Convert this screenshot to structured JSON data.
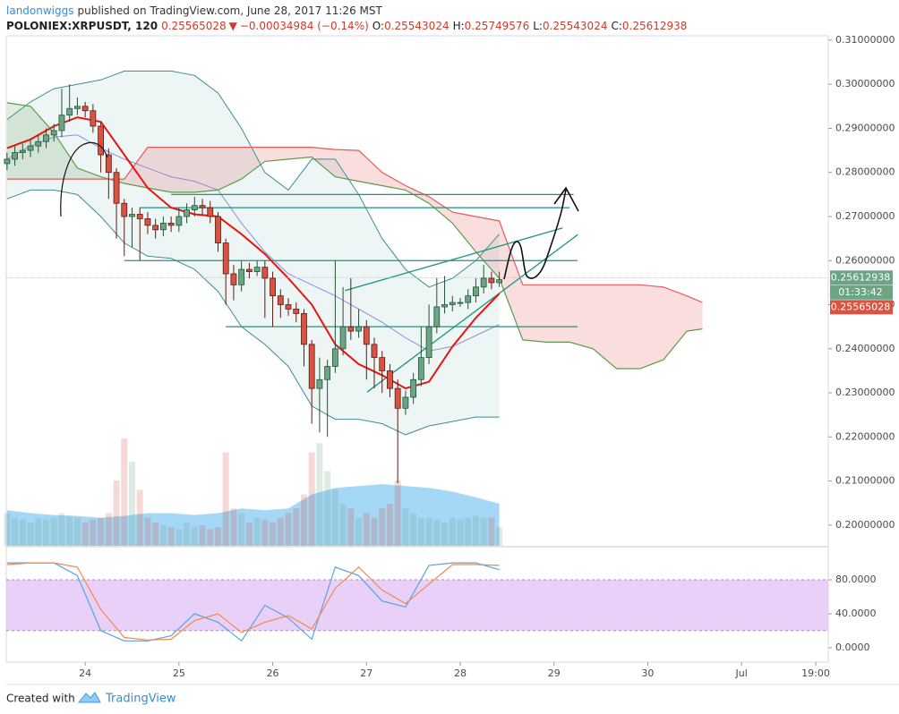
{
  "header": {
    "author": "landonwiggs",
    "published": "published on TradingView.com, June 28, 2017 11:26 MST",
    "symbol": "POLONIEX:XRPUSDT, 120",
    "price": "0.25565028",
    "arrow": "▼",
    "change": "−0.00034984 (−0.14%)",
    "ohlc": [
      {
        "label": "O:",
        "value": "0.25543024"
      },
      {
        "label": "H:",
        "value": "0.25749576"
      },
      {
        "label": "L:",
        "value": "0.25543024"
      },
      {
        "label": "C:",
        "value": "0.25612938"
      }
    ]
  },
  "chart_data": {
    "type": "candlestick",
    "grid": false,
    "xlim": [
      -20.2,
      190.2
    ],
    "xticks": [
      {
        "value": 0,
        "label": "24"
      },
      {
        "value": 24,
        "label": "25"
      },
      {
        "value": 48,
        "label": "26"
      },
      {
        "value": 72,
        "label": "27"
      },
      {
        "value": 96,
        "label": "28"
      },
      {
        "value": 120,
        "label": "29"
      },
      {
        "value": 144,
        "label": "30"
      },
      {
        "value": 168,
        "label": "Jul"
      },
      {
        "value": 187,
        "label": "19:00"
      }
    ],
    "ylim": [
      0.1953,
      0.311
    ],
    "yticks": [
      {
        "value": 0.2,
        "label": "0.20000000"
      },
      {
        "value": 0.21,
        "label": "0.21000000"
      },
      {
        "value": 0.22,
        "label": "0.22000000"
      },
      {
        "value": 0.23,
        "label": "0.23000000"
      },
      {
        "value": 0.24,
        "label": "0.24000000"
      },
      {
        "value": 0.25,
        "label": "0.25000000"
      },
      {
        "value": 0.26,
        "label": "0.26000000"
      },
      {
        "value": 0.27,
        "label": "0.27000000"
      },
      {
        "value": 0.28,
        "label": "0.28000000"
      },
      {
        "value": 0.29,
        "label": "0.29000000"
      },
      {
        "value": 0.3,
        "label": "0.30000000"
      },
      {
        "value": 0.31,
        "label": "0.31000000"
      }
    ],
    "up_color": "#6ba583",
    "down_color": "#d75442",
    "x": [
      -20,
      -18,
      -16,
      -14,
      -12,
      -10,
      -8,
      -6,
      -4,
      -2,
      0,
      2,
      4,
      6,
      8,
      10,
      12,
      14,
      16,
      18,
      20,
      22,
      24,
      26,
      28,
      30,
      32,
      34,
      36,
      38,
      40,
      42,
      44,
      46,
      48,
      50,
      52,
      54,
      56,
      58,
      60,
      62,
      64,
      66,
      68,
      70,
      72,
      74,
      76,
      78,
      80,
      82,
      84,
      86,
      88,
      90,
      92,
      94,
      96,
      98,
      100,
      102,
      104,
      106
    ],
    "open": [
      0.282,
      0.283,
      0.2845,
      0.285,
      0.286,
      0.287,
      0.2885,
      0.2895,
      0.293,
      0.2945,
      0.295,
      0.294,
      0.2905,
      0.284,
      0.28,
      0.273,
      0.27,
      0.2705,
      0.2695,
      0.268,
      0.267,
      0.2685,
      0.268,
      0.27,
      0.2715,
      0.2725,
      0.272,
      0.27,
      0.264,
      0.257,
      0.2545,
      0.258,
      0.2575,
      0.2585,
      0.256,
      0.252,
      0.25,
      0.249,
      0.248,
      0.241,
      0.231,
      0.233,
      0.236,
      0.24,
      0.245,
      0.244,
      0.245,
      0.241,
      0.238,
      0.235,
      0.231,
      0.2265,
      0.229,
      0.233,
      0.238,
      0.245,
      0.2495,
      0.25,
      0.2505,
      0.2505,
      0.252,
      0.254,
      0.256,
      0.255
    ],
    "high": [
      0.2845,
      0.286,
      0.2865,
      0.2875,
      0.2885,
      0.29,
      0.291,
      0.299,
      0.3,
      0.297,
      0.296,
      0.2955,
      0.2915,
      0.2855,
      0.281,
      0.274,
      0.272,
      0.272,
      0.271,
      0.2695,
      0.27,
      0.27,
      0.272,
      0.273,
      0.2745,
      0.274,
      0.2735,
      0.271,
      0.265,
      0.259,
      0.26,
      0.2595,
      0.26,
      0.26,
      0.2575,
      0.2535,
      0.2515,
      0.2505,
      0.249,
      0.242,
      0.238,
      0.2375,
      0.26,
      0.254,
      0.256,
      0.249,
      0.2465,
      0.2425,
      0.2395,
      0.2365,
      0.233,
      0.2305,
      0.2345,
      0.245,
      0.25,
      0.256,
      0.2565,
      0.252,
      0.2515,
      0.2535,
      0.256,
      0.259,
      0.2575,
      0.2575
    ],
    "low": [
      0.2805,
      0.2815,
      0.283,
      0.2835,
      0.2845,
      0.2855,
      0.287,
      0.288,
      0.2915,
      0.293,
      0.2925,
      0.289,
      0.28,
      0.274,
      0.265,
      0.261,
      0.263,
      0.26,
      0.266,
      0.265,
      0.2655,
      0.2665,
      0.2665,
      0.2685,
      0.27,
      0.2705,
      0.2685,
      0.262,
      0.25,
      0.251,
      0.253,
      0.256,
      0.2565,
      0.247,
      0.245,
      0.247,
      0.2475,
      0.246,
      0.236,
      0.223,
      0.221,
      0.22,
      0.2345,
      0.2385,
      0.242,
      0.2425,
      0.233,
      0.231,
      0.23,
      0.229,
      0.2095,
      0.225,
      0.2275,
      0.2315,
      0.2365,
      0.2435,
      0.248,
      0.2485,
      0.2495,
      0.249,
      0.2505,
      0.2525,
      0.2535,
      0.254
    ],
    "close": [
      0.283,
      0.2845,
      0.285,
      0.286,
      0.287,
      0.2885,
      0.2895,
      0.293,
      0.2945,
      0.295,
      0.294,
      0.2905,
      0.284,
      0.28,
      0.273,
      0.27,
      0.2705,
      0.2695,
      0.268,
      0.267,
      0.2685,
      0.268,
      0.27,
      0.2715,
      0.2725,
      0.272,
      0.27,
      0.264,
      0.257,
      0.2545,
      0.258,
      0.2575,
      0.2585,
      0.256,
      0.252,
      0.25,
      0.249,
      0.248,
      0.241,
      0.231,
      0.233,
      0.236,
      0.24,
      0.245,
      0.244,
      0.245,
      0.241,
      0.238,
      0.235,
      0.231,
      0.2265,
      0.229,
      0.233,
      0.238,
      0.245,
      0.2495,
      0.25,
      0.2505,
      0.2505,
      0.252,
      0.254,
      0.256,
      0.255,
      0.25565028
    ],
    "bollinger": {
      "x": [
        -20,
        -14,
        -8,
        -2,
        4,
        10,
        16,
        22,
        28,
        34,
        40,
        46,
        52,
        58,
        64,
        70,
        76,
        82,
        88,
        94,
        100,
        106
      ],
      "upper": [
        0.292,
        0.296,
        0.299,
        0.3,
        0.301,
        0.303,
        0.303,
        0.303,
        0.302,
        0.298,
        0.29,
        0.28,
        0.276,
        0.283,
        0.283,
        0.275,
        0.265,
        0.258,
        0.254,
        0.256,
        0.26,
        0.266
      ],
      "middle": [
        0.283,
        0.286,
        0.288,
        0.2885,
        0.2855,
        0.283,
        0.281,
        0.279,
        0.278,
        0.276,
        0.2685,
        0.262,
        0.257,
        0.2545,
        0.252,
        0.249,
        0.246,
        0.2425,
        0.2395,
        0.2405,
        0.243,
        0.2455
      ],
      "lower": [
        0.274,
        0.276,
        0.276,
        0.275,
        0.27,
        0.264,
        0.261,
        0.2605,
        0.258,
        0.253,
        0.245,
        0.241,
        0.236,
        0.227,
        0.224,
        0.224,
        0.223,
        0.2205,
        0.2225,
        0.2235,
        0.2245,
        0.2245
      ],
      "color": "#3e8e92",
      "middle_color": "#8d8fd6"
    },
    "ema": {
      "x": [
        -20,
        -14,
        -8,
        -2,
        4,
        10,
        16,
        22,
        28,
        34,
        40,
        46,
        52,
        58,
        64,
        70,
        76,
        82,
        88,
        94,
        100,
        106
      ],
      "values": [
        0.2855,
        0.2875,
        0.2905,
        0.2925,
        0.2915,
        0.284,
        0.2765,
        0.272,
        0.2705,
        0.27,
        0.266,
        0.2615,
        0.256,
        0.25,
        0.241,
        0.2365,
        0.234,
        0.231,
        0.2325,
        0.2405,
        0.247,
        0.2525
      ],
      "color": "#e8140f"
    },
    "ichimoku": {
      "x": [
        -20,
        -14,
        -8,
        -2,
        4,
        10,
        16,
        22,
        28,
        34,
        40,
        46,
        52,
        58,
        64,
        70,
        76,
        82,
        88,
        94,
        100,
        106,
        112,
        118,
        124,
        130,
        136,
        142,
        148,
        154,
        158
      ],
      "span_a": [
        0.2958,
        0.295,
        0.289,
        0.281,
        0.279,
        0.2775,
        0.2765,
        0.2755,
        0.2755,
        0.276,
        0.2785,
        0.2825,
        0.283,
        0.2835,
        0.279,
        0.278,
        0.277,
        0.276,
        0.273,
        0.2685,
        0.262,
        0.256,
        0.242,
        0.2415,
        0.2415,
        0.24,
        0.2355,
        0.2355,
        0.2375,
        0.244,
        0.2445
      ],
      "span_b": [
        0.2785,
        0.2785,
        0.2785,
        0.2785,
        0.2785,
        0.2785,
        0.2857,
        0.2857,
        0.2857,
        0.2857,
        0.2857,
        0.2857,
        0.2857,
        0.2857,
        0.2852,
        0.285,
        0.28,
        0.277,
        0.2745,
        0.271,
        0.27,
        0.269,
        0.2545,
        0.2545,
        0.2545,
        0.2545,
        0.2545,
        0.2545,
        0.254,
        0.252,
        0.2505
      ],
      "color_a": "#5d9c4a",
      "color_b": "#e65a5a"
    },
    "levels": [
      {
        "value": 0.275,
        "x": [
          22,
          125
        ]
      },
      {
        "value": 0.272,
        "x": [
          14,
          124
        ]
      },
      {
        "value": 0.26,
        "x": [
          10,
          126
        ]
      },
      {
        "value": 0.245,
        "x": [
          36,
          126
        ]
      }
    ],
    "trendlines": [
      {
        "x": [
          66.5,
          122.2
        ],
        "y": [
          0.2532,
          0.2674
        ]
      },
      {
        "x": [
          72.2,
          126.1
        ],
        "y": [
          0.2302,
          0.2659
        ]
      }
    ],
    "line_color": "#1b9480",
    "volume": {
      "values": [
        35,
        30,
        28,
        25,
        30,
        28,
        30,
        35,
        32,
        30,
        25,
        28,
        30,
        35,
        70,
        115,
        90,
        60,
        30,
        25,
        22,
        20,
        18,
        25,
        20,
        22,
        18,
        20,
        100,
        40,
        35,
        25,
        30,
        28,
        25,
        30,
        35,
        40,
        55,
        100,
        110,
        80,
        60,
        45,
        40,
        30,
        35,
        30,
        40,
        45,
        70,
        40,
        35,
        30,
        30,
        28,
        25,
        30,
        28,
        30,
        32,
        30,
        30,
        20
      ],
      "ma_x": [
        -20,
        -14,
        -8,
        -2,
        4,
        10,
        16,
        22,
        28,
        34,
        40,
        46,
        52,
        58,
        64,
        70,
        76,
        82,
        88,
        94,
        100,
        106
      ],
      "ma": [
        38,
        35,
        33,
        32,
        30,
        32,
        35,
        35,
        33,
        35,
        40,
        38,
        40,
        55,
        62,
        64,
        66,
        64,
        62,
        58,
        52,
        45
      ],
      "ma_color": "#8fcdf5"
    },
    "price_tags": [
      {
        "value": 0.25612938,
        "color": "#6ba583"
      },
      {
        "label": "01:33:42",
        "color": "#6ba583"
      },
      {
        "value": 0.25565028,
        "color": "#d75442"
      }
    ],
    "stochastic": {
      "x": [
        -20,
        -14,
        -8,
        -2,
        4,
        10,
        16,
        22,
        28,
        34,
        40,
        46,
        52,
        58,
        64,
        70,
        76,
        82,
        88,
        94,
        100,
        106
      ],
      "k": [
        100,
        100,
        100,
        85,
        20,
        8,
        8,
        14,
        40,
        30,
        8,
        50,
        35,
        10,
        95,
        85,
        55,
        48,
        97,
        100,
        100,
        92
      ],
      "d": [
        98,
        100,
        100,
        95,
        45,
        12,
        9,
        10,
        32,
        40,
        18,
        30,
        38,
        22,
        70,
        95,
        68,
        52,
        75,
        98,
        98,
        97
      ],
      "k_color": "#5aa0e6",
      "d_color": "#f08a4a",
      "ylim": [
        -17,
        118
      ],
      "yticks": [
        {
          "value": 0,
          "label": "0.0000"
        },
        {
          "value": 40,
          "label": "40.0000"
        },
        {
          "value": 80,
          "label": "80.0000"
        }
      ],
      "band": [
        20,
        80
      ],
      "band_color": "#e3c4f7"
    }
  },
  "footer": {
    "created": "Created with",
    "brand": "TradingView"
  }
}
